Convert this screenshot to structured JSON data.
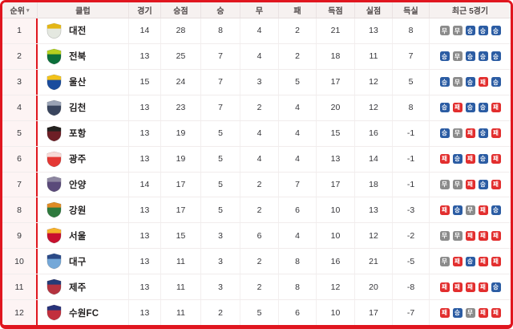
{
  "table": {
    "columns": [
      "순위",
      "클럽",
      "경기",
      "승점",
      "승",
      "무",
      "패",
      "득점",
      "실점",
      "득실",
      "최근 5경기"
    ],
    "sort_indicator": "▾",
    "rows": [
      {
        "rank": "1",
        "club": "대전",
        "games": "14",
        "points": "28",
        "wins": "8",
        "draws": "4",
        "losses": "2",
        "goals_for": "21",
        "goals_against": "13",
        "goal_diff": "8",
        "recent": [
          "무",
          "무",
          "승",
          "승",
          "승"
        ],
        "logo_primary": "#e4e8e0",
        "logo_accent": "#e3b616"
      },
      {
        "rank": "2",
        "club": "전북",
        "games": "13",
        "points": "25",
        "wins": "7",
        "draws": "4",
        "losses": "2",
        "goals_for": "18",
        "goals_against": "11",
        "goal_diff": "7",
        "recent": [
          "승",
          "무",
          "승",
          "승",
          "승"
        ],
        "logo_primary": "#0b6f3a",
        "logo_accent": "#b5cf1f"
      },
      {
        "rank": "3",
        "club": "울산",
        "games": "15",
        "points": "24",
        "wins": "7",
        "draws": "3",
        "losses": "5",
        "goals_for": "17",
        "goals_against": "12",
        "goal_diff": "5",
        "recent": [
          "승",
          "무",
          "승",
          "패",
          "승"
        ],
        "logo_primary": "#1a4c9d",
        "logo_accent": "#f2c21a"
      },
      {
        "rank": "4",
        "club": "김천",
        "games": "13",
        "points": "23",
        "wins": "7",
        "draws": "2",
        "losses": "4",
        "goals_for": "20",
        "goals_against": "12",
        "goal_diff": "8",
        "recent": [
          "승",
          "패",
          "승",
          "승",
          "패"
        ],
        "logo_primary": "#39455e",
        "logo_accent": "#9aa3b5"
      },
      {
        "rank": "5",
        "club": "포항",
        "games": "13",
        "points": "19",
        "wins": "5",
        "draws": "4",
        "losses": "4",
        "goals_for": "15",
        "goals_against": "16",
        "goal_diff": "-1",
        "recent": [
          "승",
          "무",
          "패",
          "승",
          "패"
        ],
        "logo_primary": "#6d1f26",
        "logo_accent": "#23211f"
      },
      {
        "rank": "6",
        "club": "광주",
        "games": "13",
        "points": "19",
        "wins": "5",
        "draws": "4",
        "losses": "4",
        "goals_for": "13",
        "goals_against": "14",
        "goal_diff": "-1",
        "recent": [
          "패",
          "승",
          "패",
          "승",
          "패"
        ],
        "logo_primary": "#e43834",
        "logo_accent": "#f7d9d6"
      },
      {
        "rank": "7",
        "club": "안양",
        "games": "14",
        "points": "17",
        "wins": "5",
        "draws": "2",
        "losses": "7",
        "goals_for": "17",
        "goals_against": "18",
        "goal_diff": "-1",
        "recent": [
          "무",
          "무",
          "패",
          "승",
          "패"
        ],
        "logo_primary": "#5a4a7a",
        "logo_accent": "#8d86a0"
      },
      {
        "rank": "8",
        "club": "강원",
        "games": "13",
        "points": "17",
        "wins": "5",
        "draws": "2",
        "losses": "6",
        "goals_for": "10",
        "goals_against": "13",
        "goal_diff": "-3",
        "recent": [
          "패",
          "승",
          "무",
          "패",
          "승"
        ],
        "logo_primary": "#2e7a3e",
        "logo_accent": "#e08b26"
      },
      {
        "rank": "9",
        "club": "서울",
        "games": "13",
        "points": "15",
        "wins": "3",
        "draws": "6",
        "losses": "4",
        "goals_for": "10",
        "goals_against": "12",
        "goal_diff": "-2",
        "recent": [
          "무",
          "무",
          "패",
          "패",
          "패"
        ],
        "logo_primary": "#c8102e",
        "logo_accent": "#f4b32a"
      },
      {
        "rank": "10",
        "club": "대구",
        "games": "13",
        "points": "11",
        "wins": "3",
        "draws": "2",
        "losses": "8",
        "goals_for": "16",
        "goals_against": "21",
        "goal_diff": "-5",
        "recent": [
          "무",
          "패",
          "승",
          "패",
          "패"
        ],
        "logo_primary": "#74a8d8",
        "logo_accent": "#2b4a87"
      },
      {
        "rank": "11",
        "club": "제주",
        "games": "13",
        "points": "11",
        "wins": "3",
        "draws": "2",
        "losses": "8",
        "goals_for": "12",
        "goals_against": "20",
        "goal_diff": "-8",
        "recent": [
          "패",
          "패",
          "패",
          "패",
          "승"
        ],
        "logo_primary": "#b5333f",
        "logo_accent": "#243c77"
      },
      {
        "rank": "12",
        "club": "수원FC",
        "games": "13",
        "points": "11",
        "wins": "2",
        "draws": "5",
        "losses": "6",
        "goals_for": "10",
        "goals_against": "17",
        "goal_diff": "-7",
        "recent": [
          "패",
          "승",
          "무",
          "패",
          "패"
        ],
        "logo_primary": "#c22f3d",
        "logo_accent": "#27337a"
      }
    ]
  },
  "result_map": {
    "승": "win",
    "무": "draw",
    "패": "loss"
  },
  "result_colors": {
    "win": "#2b5ca3",
    "draw": "#8b8b8b",
    "loss": "#e22e2e"
  },
  "theme": {
    "border_red": "#e0161f",
    "rank_col_bg": "#fdf4f4",
    "header_bg": "#f6f1f0",
    "row_bg": "#ffffff"
  }
}
